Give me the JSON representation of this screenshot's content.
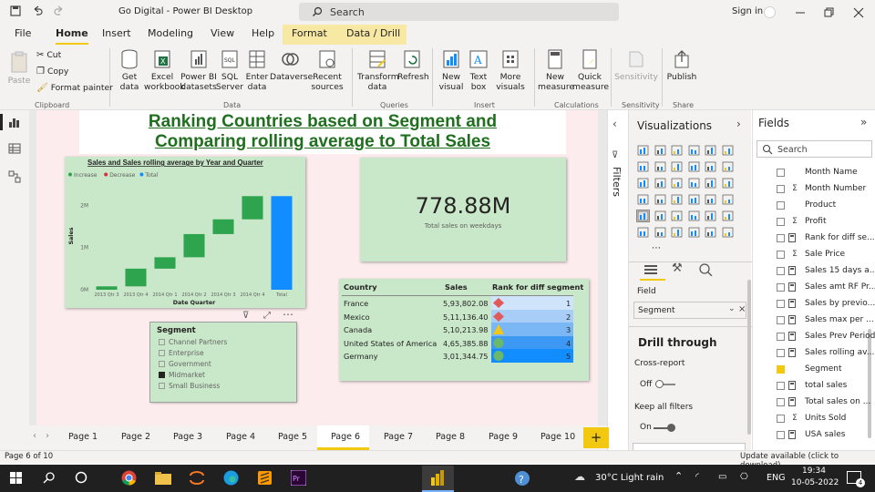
{
  "window": {
    "title": "Go Digital - Power BI Desktop",
    "search_placeholder": "Search",
    "signin": "Sign in"
  },
  "ribbon_tabs": [
    "File",
    "Home",
    "Insert",
    "Modeling",
    "View",
    "Help",
    "Format",
    "Data / Drill"
  ],
  "ribbon": {
    "paste": "Paste",
    "cut": "Cut",
    "copy": "Copy",
    "format_painter": "Format painter",
    "get_data": "Get data",
    "excel_workbook": "Excel workbook",
    "powerbi_datasets": "Power BI datasets",
    "sql_server": "SQL Server",
    "enter_data": "Enter data",
    "dataverse": "Dataverse",
    "recent_sources": "Recent sources",
    "transform_data": "Transform data",
    "refresh": "Refresh",
    "new_visual": "New visual",
    "text_box": "Text box",
    "more_visuals": "More visuals",
    "new_measure": "New measure",
    "quick_measure": "Quick measure",
    "sensitivity": "Sensitivity",
    "publish": "Publish",
    "groups": [
      "Clipboard",
      "Data",
      "Queries",
      "Insert",
      "Calculations",
      "Sensitivity",
      "Share"
    ]
  },
  "report": {
    "title_line1": "Ranking Countries based on Segment and",
    "title_line2": "Comparing rolling average to Total Sales"
  },
  "chart_data": {
    "type": "waterfall",
    "title": "Sales and Sales rolling average by Year and Quarter",
    "legend": [
      "Increase",
      "Decrease",
      "Total"
    ],
    "legend_colors": [
      "#2ea44f",
      "#d13438",
      "#118dff"
    ],
    "xlabel": "Date Quarter",
    "ylabel": "Sales",
    "y_ticks": [
      "0M",
      "1M",
      "2M"
    ],
    "ylim": [
      0,
      2.55
    ],
    "categories": [
      "2013 Qtr 3",
      "2013 Qtr 4",
      "2014 Qtr 1",
      "2014 Qtr 2",
      "2014 Qtr 3",
      "2014 Qtr 4",
      "Total"
    ],
    "values": [
      0.08,
      0.42,
      0.27,
      0.55,
      0.35,
      0.55,
      2.22
    ]
  },
  "kpi": {
    "value": "778.88M",
    "label": "Total sales on weekdays"
  },
  "slicer": {
    "title": "Segment",
    "items": [
      {
        "label": "Channel Partners",
        "checked": false
      },
      {
        "label": "Enterprise",
        "checked": false
      },
      {
        "label": "Government",
        "checked": false
      },
      {
        "label": "Midmarket",
        "checked": true
      },
      {
        "label": "Small Business",
        "checked": false
      }
    ]
  },
  "table": {
    "columns": [
      "Country",
      "Sales",
      "Rank for diff segment"
    ],
    "rows": [
      {
        "country": "France",
        "sales": "5,93,802.08",
        "rank": "1",
        "icon": "diamond-red"
      },
      {
        "country": "Mexico",
        "sales": "5,11,136.40",
        "rank": "2",
        "icon": "diamond-red"
      },
      {
        "country": "Canada",
        "sales": "5,10,213.98",
        "rank": "3",
        "icon": "triangle-yellow"
      },
      {
        "country": "United States of America",
        "sales": "4,65,385.88",
        "rank": "4",
        "icon": "circle-green"
      },
      {
        "country": "Germany",
        "sales": "3,01,344.75",
        "rank": "5",
        "icon": "circle-green"
      }
    ]
  },
  "filters_label": "Filters",
  "visualizations": {
    "title": "Visualizations",
    "field_label": "Field",
    "field_value": "Segment",
    "drill_through": "Drill through",
    "cross_report": "Cross-report",
    "cross_report_state": "Off",
    "keep_all_filters": "Keep all filters",
    "keep_all_filters_state": "On"
  },
  "fields": {
    "title": "Fields",
    "search_placeholder": "Search",
    "items": [
      {
        "label": "Month Name",
        "icon": "",
        "checked": false
      },
      {
        "label": "Month Number",
        "icon": "sigma",
        "checked": false
      },
      {
        "label": "Product",
        "icon": "",
        "checked": false
      },
      {
        "label": "Profit",
        "icon": "sigma",
        "checked": false
      },
      {
        "label": "Rank for diff se...",
        "icon": "calc",
        "checked": false
      },
      {
        "label": "Sale Price",
        "icon": "sigma",
        "checked": false
      },
      {
        "label": "Sales 15 days a...",
        "icon": "calc",
        "checked": false
      },
      {
        "label": "Sales amt RF Pr...",
        "icon": "calc",
        "checked": false
      },
      {
        "label": "Sales by previo...",
        "icon": "calc",
        "checked": false
      },
      {
        "label": "Sales max per ...",
        "icon": "calc",
        "checked": false
      },
      {
        "label": "Sales Prev Period",
        "icon": "calc",
        "checked": false
      },
      {
        "label": "Sales rolling av...",
        "icon": "calc",
        "checked": false
      },
      {
        "label": "Segment",
        "icon": "",
        "checked": true
      },
      {
        "label": "total sales",
        "icon": "calc",
        "checked": false
      },
      {
        "label": "Total sales on ...",
        "icon": "calc",
        "checked": false
      },
      {
        "label": "Units Sold",
        "icon": "sigma",
        "checked": false
      },
      {
        "label": "USA sales",
        "icon": "calc",
        "checked": false
      }
    ]
  },
  "pages": [
    "Page 1",
    "Page 2",
    "Page 3",
    "Page 4",
    "Page 5",
    "Page 6",
    "Page 7",
    "Page 8",
    "Page 9",
    "Page 10"
  ],
  "active_page": "Page 6",
  "status": {
    "page_info": "Page 6 of 10",
    "update": "Update available (click to download)"
  },
  "taskbar": {
    "weather": "30°C  Light rain",
    "lang": "ENG",
    "time": "19:34",
    "date": "10-05-2022",
    "notifications": "4"
  }
}
